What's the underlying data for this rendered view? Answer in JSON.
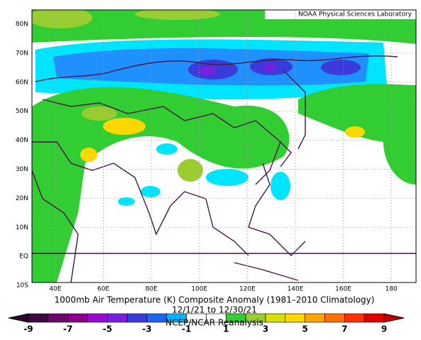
{
  "header": {
    "label": "NOAA Physical Sciences Laboratory"
  },
  "axes": {
    "lat_labels": [
      "80N",
      "70N",
      "60N",
      "50N",
      "40N",
      "30N",
      "20N",
      "10N",
      "EQ",
      "10S"
    ],
    "lon_labels": [
      "40E",
      "60E",
      "80E",
      "100E",
      "120E",
      "140E",
      "160E",
      "180"
    ]
  },
  "title": {
    "line1": "1000mb Air Temperature (K) Composite Anomaly (1981–2010 Climatology)",
    "line2": "12/1/21  to 12/30/21",
    "line3": "NCEP/NCAR Reanalysis"
  },
  "colorbar": {
    "labels": [
      "-9",
      "-7",
      "-5",
      "-3",
      "-1",
      "1",
      "3",
      "5",
      "7",
      "9"
    ],
    "colors": [
      "#3c0a3c",
      "#6b0a6b",
      "#8b008b",
      "#9a0ad0",
      "#7a1fe0",
      "#3b3bdc",
      "#1e64f0",
      "#00b4ff",
      "#ffffff",
      "#ffffff",
      "#32cd32",
      "#9acd32",
      "#d8e000",
      "#ffd700",
      "#ffa500",
      "#ff7000",
      "#ff3000",
      "#e00000"
    ],
    "low_color": "#2a052a",
    "high_color": "#c00000"
  }
}
